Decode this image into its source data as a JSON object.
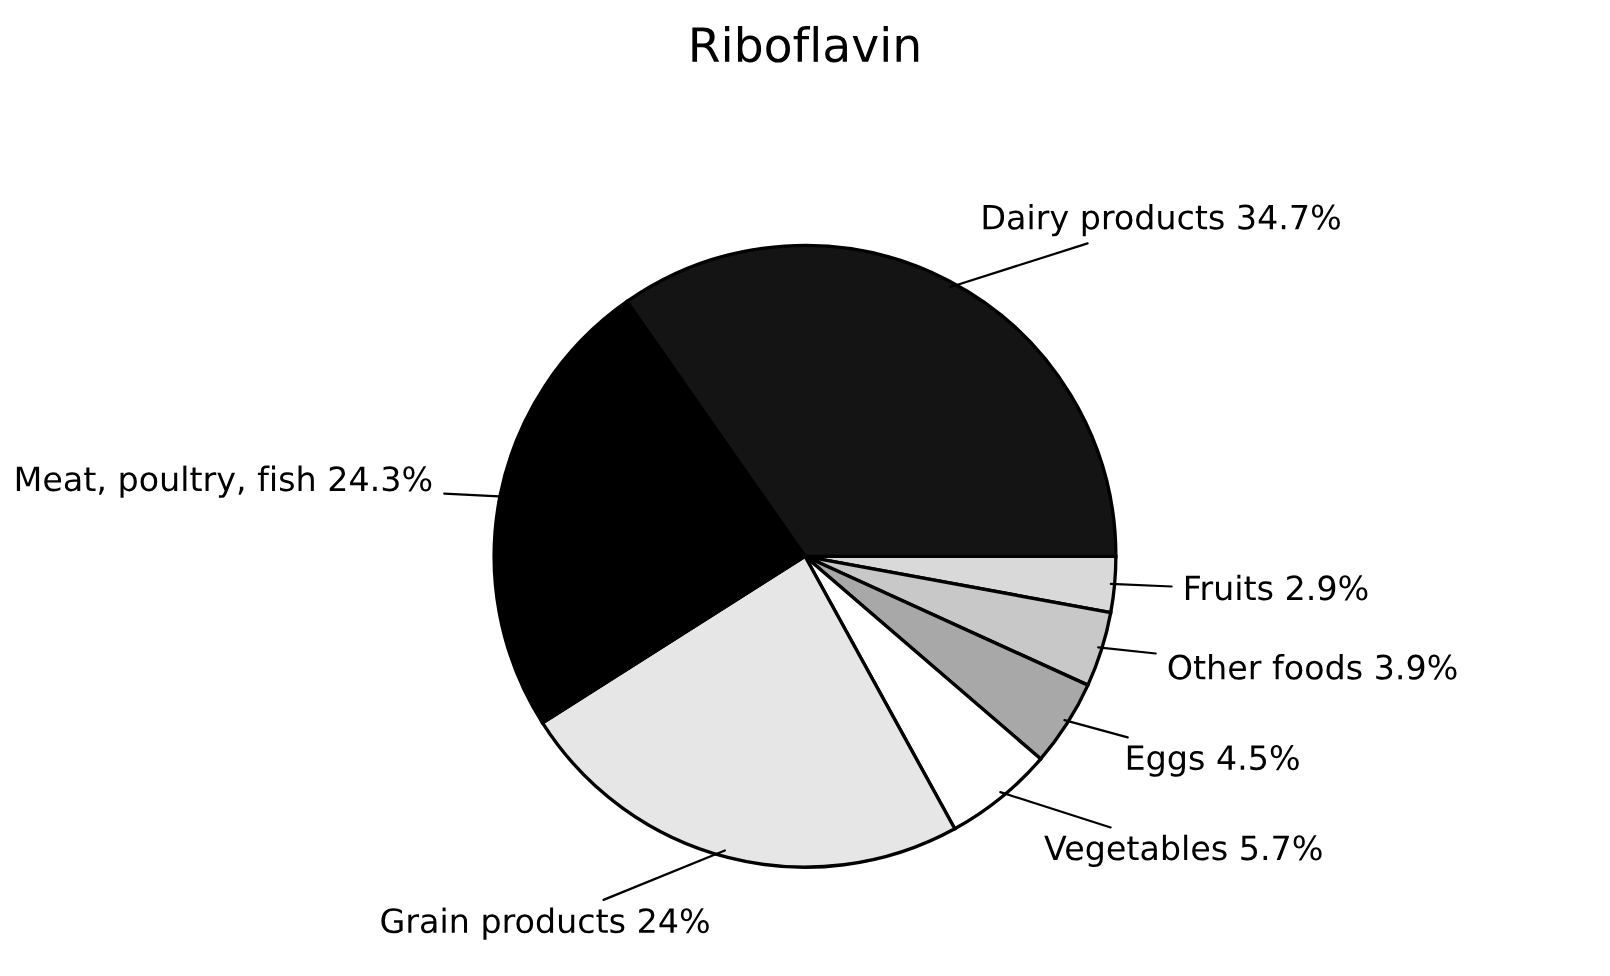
{
  "chart_data": {
    "type": "pie",
    "title": "Riboflavin",
    "categories": [
      "Fruits",
      "Other foods",
      "Eggs",
      "Vegetables",
      "Grain products",
      "Meat, poultry, fish",
      "Dairy products"
    ],
    "values": [
      2.9,
      3.9,
      4.5,
      5.7,
      24,
      24.3,
      34.7
    ],
    "value_labels": [
      "2.9%",
      "3.9%",
      "4.5%",
      "5.7%",
      "24%",
      "24.3%",
      "34.7%"
    ],
    "colors": [
      "#d9d9d9",
      "#c8c8c8",
      "#a8a8a8",
      "#ffffff",
      "#e6e6e6",
      "#000000",
      "#141414"
    ]
  }
}
